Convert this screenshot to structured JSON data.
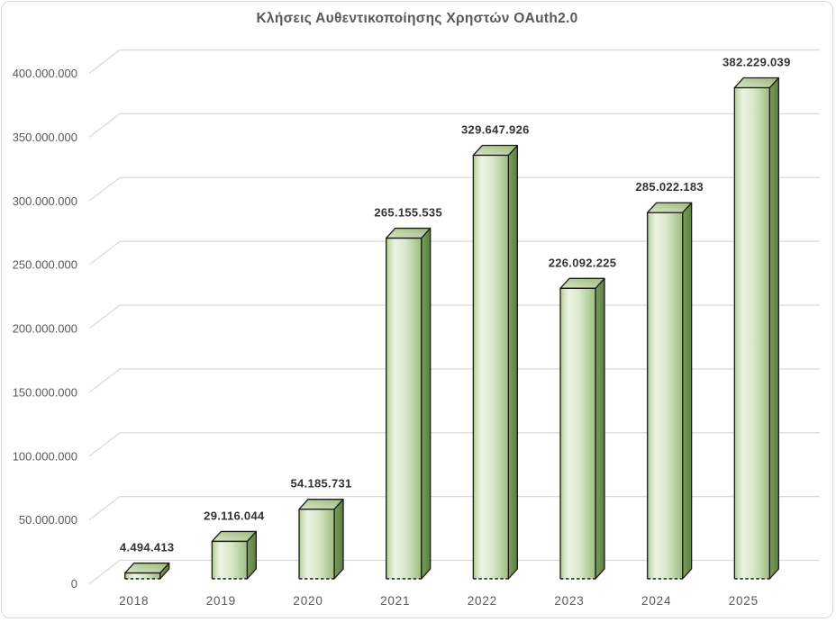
{
  "chart_data": {
    "type": "bar",
    "variant": "3d-column",
    "title": "Κλήσεις Αυθεντικοποίησης Χρηστών OAuth2.0",
    "categories": [
      "2018",
      "2019",
      "2020",
      "2021",
      "2022",
      "2023",
      "2024",
      "2025"
    ],
    "values": [
      4494413,
      29116044,
      54185731,
      265155535,
      329647926,
      226092225,
      285022183,
      382229039
    ],
    "data_labels": [
      "4.494.413",
      "29.116.044",
      "54.185.731",
      "265.155.535",
      "329.647.926",
      "226.092.225",
      "285.022.183",
      "382.229.039"
    ],
    "xlabel": "",
    "ylabel": "",
    "ylim": [
      0,
      400000000
    ],
    "ytick_step": 50000000,
    "ytick_labels": [
      "0",
      "50.000.000",
      "100.000.000",
      "150.000.000",
      "200.000.000",
      "250.000.000",
      "300.000.000",
      "350.000.000",
      "400.000.000"
    ],
    "grid": true,
    "legend": "none",
    "colors": {
      "bar_front_edge": "#a9c48b",
      "bar_front_light": "#ecf4e4",
      "bar_front_mid": "#d7e8c8",
      "bar_front_dark": "#9fbd81",
      "bar_top_light": "#d7e7c5",
      "bar_top_dark": "#9db97c",
      "bar_side_light": "#7a9c5a",
      "bar_side_dark": "#5e7f43",
      "outline": "#1a1a1a",
      "gridline": "#d9d9d9",
      "axis_text": "#595959",
      "label_text": "#333333",
      "title_text": "#595959"
    }
  }
}
